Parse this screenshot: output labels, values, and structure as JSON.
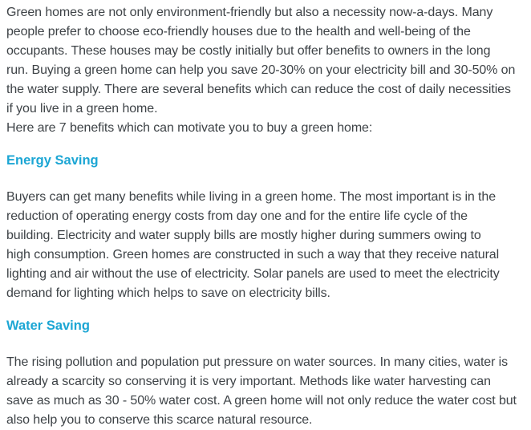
{
  "page": {
    "background_color": "#ffffff",
    "body_text_color": "#3e4347",
    "heading_accent_color": "#1ca6d4"
  },
  "article": {
    "intro_paragraph": "Green homes are not only environment-friendly but also a necessity now-a-days. Many\npeople prefer to choose eco-friendly houses due to the health and well-being of the\noccupants. These houses may be costly initially but offer benefits to owners in the long\nrun. Buying a green home can help you save 20-30% on your electricity bill and 30-50% on\nthe water supply. There are several benefits which can reduce the cost of daily necessities\nif you live in a green home.\nHere are 7 benefits which can motivate you to buy a green home:",
    "sections": [
      {
        "heading": "Energy Saving",
        "body": "Buyers can get many benefits while living in a green home. The most important is in the\nreduction of operating energy costs from day one and for the entire life cycle of the\nbuilding. Electricity and water supply bills are mostly higher during summers owing to\nhigh consumption. Green homes are constructed in such a way that they receive natural\nlighting and air without the use of electricity. Solar panels are used to meet the electricity\ndemand for lighting which helps to save on electricity bills."
      },
      {
        "heading": "Water Saving",
        "body": "The rising pollution and population put pressure on water sources. In many cities, water is\nalready a scarcity so conserving it is very important. Methods like water harvesting can\nsave as much as 30 - 50% water cost. A green home will not only reduce the water cost but\nalso help you to conserve this scarce natural resource."
      }
    ]
  }
}
